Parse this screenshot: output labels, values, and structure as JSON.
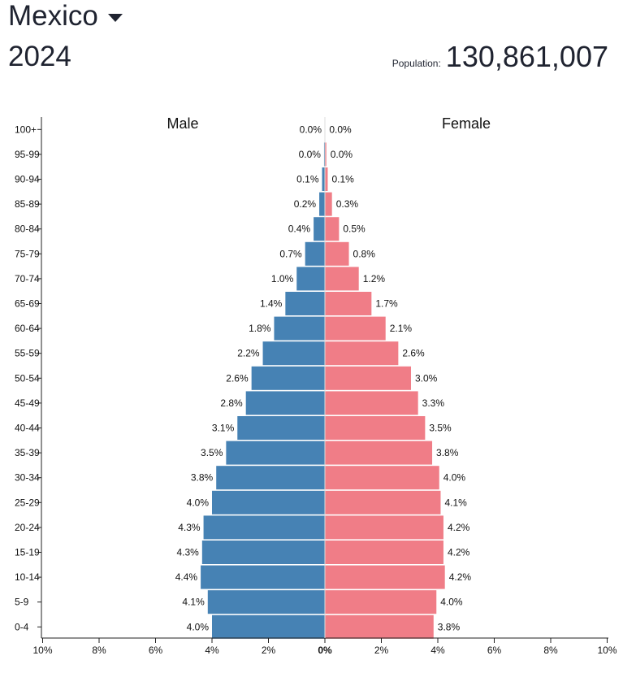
{
  "header": {
    "country": "Mexico",
    "year": "2024",
    "population_label": "Population:",
    "population_value": "130,861,007"
  },
  "colors": {
    "male": "#4682b4",
    "female": "#f07d87"
  },
  "chart_data": {
    "type": "bar",
    "title": "Mexico 2024",
    "orientation": "horizontal-population-pyramid",
    "categories": [
      "100+",
      "95-99",
      "90-94",
      "85-89",
      "80-84",
      "75-79",
      "70-74",
      "65-69",
      "60-64",
      "55-59",
      "50-54",
      "45-49",
      "40-44",
      "35-39",
      "30-34",
      "25-29",
      "20-24",
      "15-19",
      "10-14",
      "5-9",
      "0-4"
    ],
    "series": [
      {
        "name": "Male",
        "labels": [
          "0.0%",
          "0.0%",
          "0.1%",
          "0.2%",
          "0.4%",
          "0.7%",
          "1.0%",
          "1.4%",
          "1.8%",
          "2.2%",
          "2.6%",
          "2.8%",
          "3.1%",
          "3.5%",
          "3.8%",
          "4.0%",
          "4.3%",
          "4.3%",
          "4.4%",
          "4.1%",
          "4.0%"
        ],
        "values": [
          0.0,
          0.03,
          0.1,
          0.2,
          0.4,
          0.7,
          1.0,
          1.4,
          1.8,
          2.2,
          2.6,
          2.8,
          3.1,
          3.5,
          3.85,
          4.0,
          4.3,
          4.35,
          4.4,
          4.15,
          4.0
        ]
      },
      {
        "name": "Female",
        "labels": [
          "0.0%",
          "0.0%",
          "0.1%",
          "0.3%",
          "0.5%",
          "0.8%",
          "1.2%",
          "1.7%",
          "2.1%",
          "2.6%",
          "3.0%",
          "3.3%",
          "3.5%",
          "3.8%",
          "4.0%",
          "4.1%",
          "4.2%",
          "4.2%",
          "4.2%",
          "4.0%",
          "3.8%"
        ],
        "values": [
          0.01,
          0.05,
          0.1,
          0.25,
          0.5,
          0.85,
          1.2,
          1.65,
          2.15,
          2.6,
          3.05,
          3.3,
          3.55,
          3.8,
          4.05,
          4.1,
          4.2,
          4.2,
          4.25,
          3.95,
          3.85
        ]
      }
    ],
    "xlim": [
      -10,
      10
    ],
    "ticks": [
      -10,
      -8,
      -6,
      -4,
      -2,
      0,
      2,
      4,
      6,
      8,
      10
    ],
    "tick_labels": [
      "10%",
      "8%",
      "6%",
      "4%",
      "2%",
      "0%",
      "2%",
      "4%",
      "6%",
      "8%",
      "10%"
    ],
    "xlabel": "",
    "ylabel": ""
  }
}
